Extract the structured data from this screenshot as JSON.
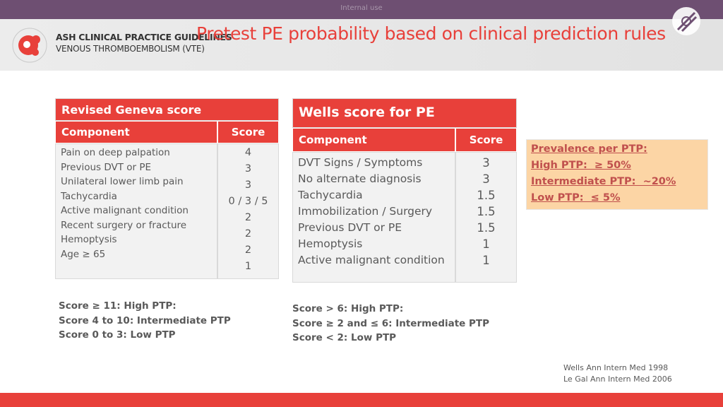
{
  "header": {
    "internal_label": "Internal use",
    "logo_line1": "ASH CLINICAL PRACTICE GUIDELINES",
    "logo_line2": "VENOUS THROMBOEMBOLISM (VTE)",
    "title": "Pretest PE probability based on clinical prediction rules"
  },
  "geneva": {
    "title": "Revised Geneva score",
    "columns": [
      "Component",
      "Score"
    ],
    "rows": [
      [
        "Pain on deep palpation",
        "4"
      ],
      [
        "Previous DVT or PE",
        "3"
      ],
      [
        "Unilateral lower limb pain",
        "3"
      ],
      [
        "Tachycardia",
        "0 / 3 / 5"
      ],
      [
        "Active malignant condition",
        "2"
      ],
      [
        "Recent surgery or fracture",
        "2"
      ],
      [
        "Hemoptysis",
        "2"
      ],
      [
        "Age ≥ 65",
        "1"
      ]
    ],
    "notes": [
      "Score ≥ 11: High PTP:",
      "Score 4 to 10: Intermediate PTP",
      "Score 0 to 3: Low PTP"
    ]
  },
  "wells": {
    "title": "Wells score for PE",
    "columns": [
      "Component",
      "Score"
    ],
    "rows": [
      [
        "DVT Signs / Symptoms",
        "3"
      ],
      [
        "No alternate diagnosis",
        "3"
      ],
      [
        "Tachycardia",
        "1.5"
      ],
      [
        "Immobilization / Surgery",
        "1.5"
      ],
      [
        "Previous DVT or PE",
        "1.5"
      ],
      [
        "Hemoptysis",
        "1"
      ],
      [
        "Active malignant condition",
        "1"
      ]
    ],
    "notes": [
      "Score > 6: High PTP:",
      "Score ≥ 2 and ≤ 6: Intermediate PTP",
      "Score < 2: Low PTP"
    ]
  },
  "prevalence": [
    "Prevalence per PTP:",
    "High PTP:  ≥ 50%",
    "Intermediate PTP:  ~20%",
    "Low PTP:  ≤ 5%"
  ],
  "references": [
    "Wells Ann Intern Med 1998",
    "Le Gal Ann Intern Med 2006"
  ]
}
